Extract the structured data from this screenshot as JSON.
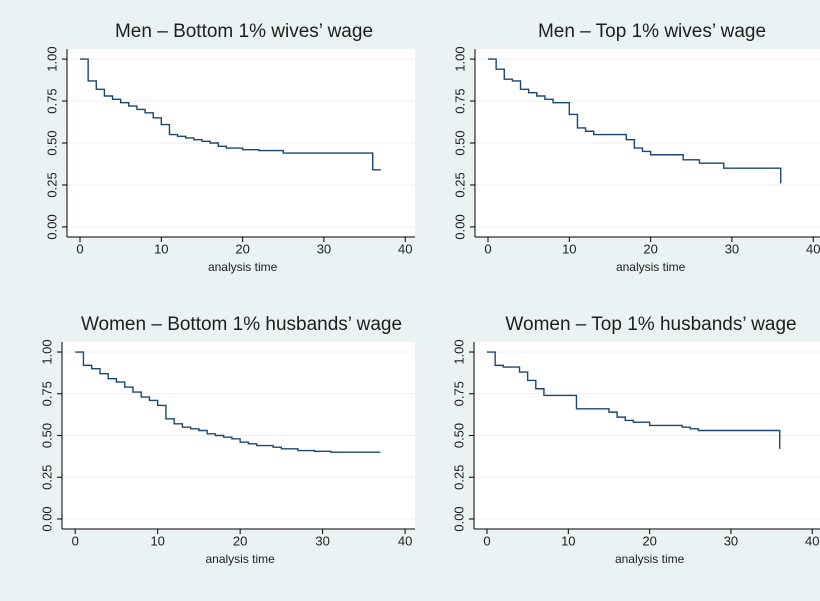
{
  "chart_data": [
    {
      "type": "step",
      "title": "Men – Bottom 1% wives’ wage",
      "xlabel": "analysis time",
      "x": [
        0,
        1,
        2,
        3,
        4,
        5,
        6,
        7,
        8,
        9,
        10,
        11,
        12,
        13,
        14,
        15,
        16,
        17,
        18,
        20,
        22,
        25,
        36,
        37
      ],
      "values": [
        1,
        0.87,
        0.82,
        0.78,
        0.76,
        0.74,
        0.72,
        0.7,
        0.68,
        0.65,
        0.61,
        0.55,
        0.54,
        0.53,
        0.52,
        0.51,
        0.5,
        0.48,
        0.47,
        0.46,
        0.455,
        0.44,
        0.34,
        0.34
      ],
      "color": "#1a476f",
      "xlim": [
        -1.6,
        41.2
      ],
      "ylim": [
        -0.06,
        1.06
      ],
      "xticks": [
        0,
        10,
        20,
        30,
        40
      ],
      "yticks": [
        {
          "value": 0,
          "label": "0.00"
        },
        0.25,
        {
          "value": 0.5,
          "label": "0.50"
        },
        0.75,
        {
          "value": 1,
          "label": "1.00"
        }
      ],
      "grid": true
    },
    {
      "type": "step",
      "title": "Men – Top 1% wives’ wage",
      "xlabel": "analysis time",
      "x": [
        0,
        1,
        2,
        3,
        4,
        5,
        6,
        7,
        8,
        10,
        11,
        12,
        13,
        17,
        18,
        19,
        20,
        24,
        26,
        29,
        36
      ],
      "values": [
        1,
        0.94,
        0.88,
        0.87,
        0.82,
        0.8,
        0.78,
        0.76,
        0.74,
        0.67,
        0.59,
        0.57,
        0.55,
        0.52,
        0.47,
        0.45,
        0.43,
        0.4,
        0.38,
        0.35,
        0.26
      ],
      "color": "#1a476f",
      "xlim": [
        -1.6,
        41.2
      ],
      "ylim": [
        -0.06,
        1.06
      ],
      "xticks": [
        0,
        10,
        20,
        30,
        40
      ],
      "yticks": [
        {
          "value": 0,
          "label": "0.00"
        },
        0.25,
        {
          "value": 0.5,
          "label": "0.50"
        },
        0.75,
        {
          "value": 1,
          "label": "1.00"
        }
      ],
      "grid": true
    },
    {
      "type": "step",
      "title": "Women – Bottom 1% husbands’ wage",
      "xlabel": "analysis time",
      "x": [
        0,
        1,
        2,
        3,
        4,
        5,
        6,
        7,
        8,
        9,
        10,
        11,
        12,
        13,
        14,
        15,
        16,
        17,
        18,
        19,
        20,
        21,
        22,
        24,
        25,
        27,
        29,
        31,
        37
      ],
      "values": [
        1,
        0.92,
        0.9,
        0.87,
        0.84,
        0.82,
        0.79,
        0.76,
        0.73,
        0.71,
        0.68,
        0.6,
        0.57,
        0.55,
        0.54,
        0.53,
        0.51,
        0.5,
        0.49,
        0.48,
        0.46,
        0.45,
        0.44,
        0.43,
        0.42,
        0.41,
        0.405,
        0.4,
        0.4
      ],
      "color": "#1a476f",
      "xlim": [
        -1.6,
        41.2
      ],
      "ylim": [
        -0.06,
        1.06
      ],
      "xticks": [
        0,
        10,
        20,
        30,
        40
      ],
      "yticks": [
        {
          "value": 0,
          "label": "0.00"
        },
        0.25,
        {
          "value": 0.5,
          "label": "0.50"
        },
        0.75,
        {
          "value": 1,
          "label": "1.00"
        }
      ],
      "grid": true
    },
    {
      "type": "step",
      "title": "Women – Top 1% husbands’ wage",
      "xlabel": "analysis time",
      "x": [
        0,
        1,
        2,
        4,
        5,
        6,
        7,
        11,
        15,
        16,
        17,
        18,
        20,
        24,
        25,
        26,
        36,
        36
      ],
      "values": [
        1,
        0.92,
        0.91,
        0.88,
        0.83,
        0.78,
        0.74,
        0.66,
        0.64,
        0.61,
        0.59,
        0.58,
        0.56,
        0.55,
        0.54,
        0.53,
        0.53,
        0.42
      ],
      "color": "#1a476f",
      "xlim": [
        -1.6,
        41.2
      ],
      "ylim": [
        -0.06,
        1.06
      ],
      "xticks": [
        0,
        10,
        20,
        30,
        40
      ],
      "yticks": [
        {
          "value": 0,
          "label": "0.00"
        },
        0.25,
        {
          "value": 0.5,
          "label": "0.50"
        },
        0.75,
        {
          "value": 1,
          "label": "1.00"
        }
      ],
      "grid": true
    }
  ]
}
